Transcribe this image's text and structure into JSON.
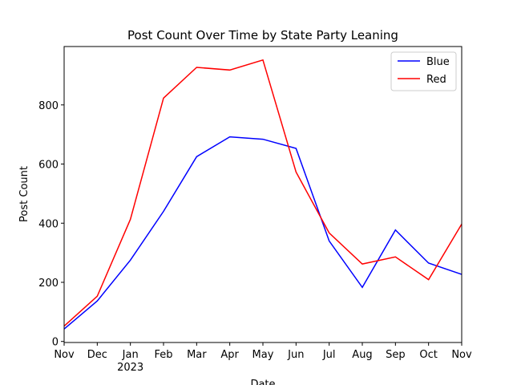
{
  "chart_data": {
    "type": "line",
    "title": "Post Count Over Time by State Party Leaning",
    "x_label": "Date",
    "y_label": "Post Count",
    "categories": [
      "Nov",
      "Dec",
      "Jan\n2023",
      "Feb",
      "Mar",
      "Apr",
      "May",
      "Jun",
      "Jul",
      "Aug",
      "Sep",
      "Oct",
      "Nov"
    ],
    "series": [
      {
        "name": "Blue",
        "color": "#0000ff",
        "values": [
          42,
          137,
          275,
          440,
          625,
          692,
          684,
          653,
          340,
          183,
          377,
          265,
          227
        ]
      },
      {
        "name": "Red",
        "color": "#ff0000",
        "values": [
          52,
          153,
          413,
          823,
          927,
          918,
          952,
          573,
          367,
          262,
          286,
          209,
          397
        ]
      }
    ],
    "ylim": [
      -3.5,
      997.5
    ],
    "yticks": [
      0,
      200,
      400,
      600,
      800
    ],
    "legend": "upper right"
  }
}
